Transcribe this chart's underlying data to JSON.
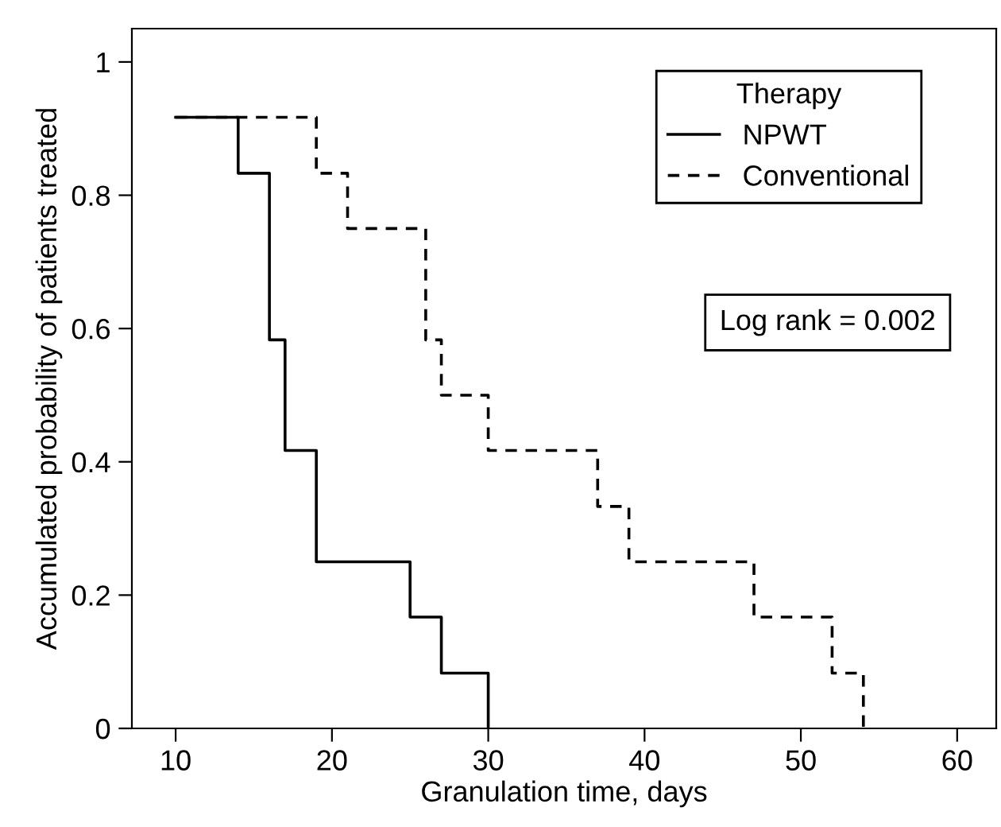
{
  "chart_data": {
    "type": "step",
    "xlabel": "Granulation time, days",
    "ylabel": "Accumulated probability of patients treated",
    "legend_title": "Therapy",
    "legend": "top right",
    "grid": false,
    "series": [
      {
        "name": "NPWT",
        "color": "#000000",
        "line_style": "solid",
        "x": [
          10,
          14,
          16,
          17,
          19,
          25,
          27,
          30
        ],
        "values": [
          0.917,
          0.833,
          0.583,
          0.417,
          0.25,
          0.167,
          0.083,
          0
        ]
      },
      {
        "name": "Conventional",
        "color": "#000000",
        "line_style": "dashed",
        "x": [
          10,
          19,
          21,
          26,
          27,
          30,
          37,
          39,
          47,
          52,
          54
        ],
        "values": [
          0.917,
          0.833,
          0.75,
          0.583,
          0.5,
          0.417,
          0.333,
          0.25,
          0.167,
          0.083,
          0
        ]
      }
    ],
    "xlim": [
      7.2,
      62.5
    ],
    "xticks": [
      10,
      20,
      30,
      40,
      50,
      60
    ],
    "ylim": [
      0,
      1.05
    ],
    "yticks": [
      0,
      0.2,
      0.4,
      0.6,
      0.8,
      1
    ],
    "annotations": [
      "Log rank = 0.002"
    ]
  }
}
